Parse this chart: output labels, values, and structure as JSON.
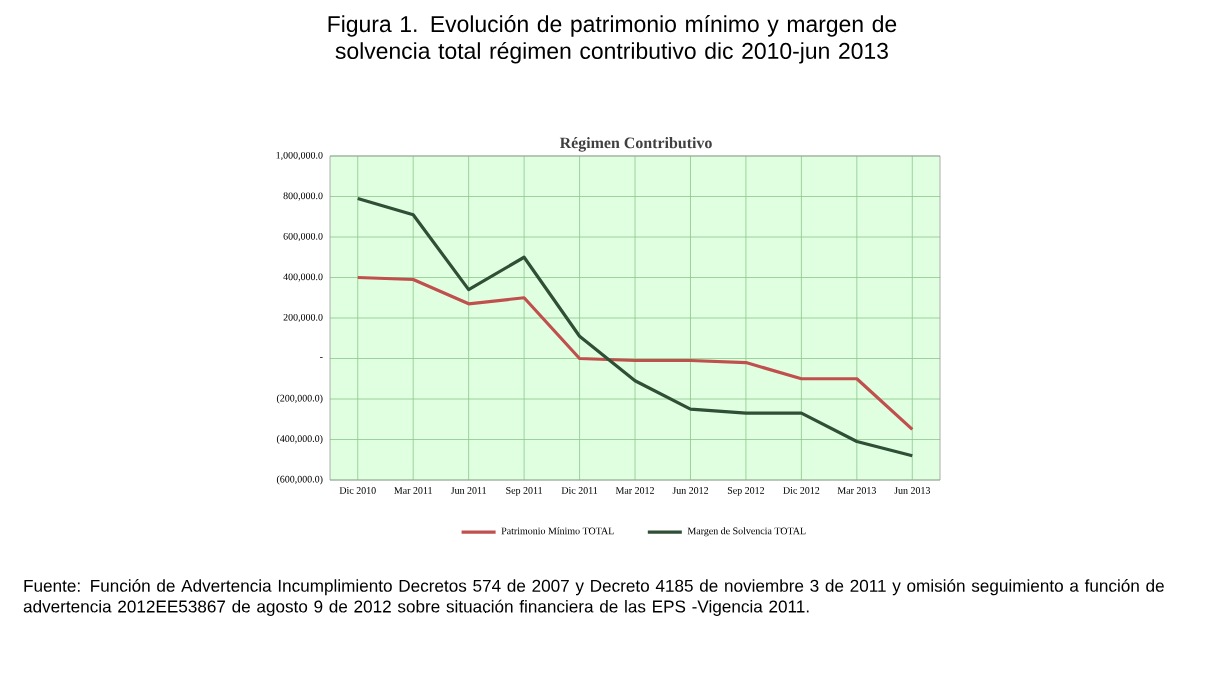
{
  "chart_data": {
    "type": "line",
    "title": "Figura 1. Evolución de patrimonio mínimo y margen de solvencia total régimen contributivo dic 2010-jun 2013",
    "subtitle": "Régimen Contributivo",
    "categories": [
      "Dic 2010",
      "Mar 2011",
      "Jun 2011",
      "Sep 2011",
      "Dic 2011",
      "Mar 2012",
      "Jun 2012",
      "Sep 2012",
      "Dic 2012",
      "Mar 2013",
      "Jun 2013"
    ],
    "series": [
      {
        "name": "Patrimonio Mínimo TOTAL",
        "color": "#c0504d",
        "values": [
          400000,
          390000,
          270000,
          300000,
          0,
          -10000,
          -10000,
          -20000,
          -100000,
          -100000,
          -350000
        ]
      },
      {
        "name": "Margen de Solvencia TOTAL",
        "color": "#2f4f36",
        "values": [
          790000,
          710000,
          340000,
          500000,
          110000,
          -110000,
          -250000,
          -270000,
          -270000,
          -410000,
          -480000
        ]
      }
    ],
    "ylim": [
      -600000,
      1000000
    ],
    "yticks": [
      {
        "value": -600000,
        "label": "(600,000.0)"
      },
      {
        "value": -400000,
        "label": "(400,000.0)"
      },
      {
        "value": -200000,
        "label": "(200,000.0)"
      },
      {
        "value": 0,
        "label": "-"
      },
      {
        "value": 200000,
        "label": "200,000.0"
      },
      {
        "value": 400000,
        "label": "400,000.0"
      },
      {
        "value": 600000,
        "label": "600,000.0"
      },
      {
        "value": 800000,
        "label": "800,000.0"
      },
      {
        "value": 1000000,
        "label": "1,000,000.0"
      }
    ],
    "grid": true,
    "legend": "bottom",
    "marker": "none",
    "line_style": "solid",
    "annotations": [
      "Fuente: Función de Advertencia Incumplimiento Decretos 574 de 2007 y Decreto 4185 de noviembre 3 de 2011 y omisión seguimiento a función de advertencia 2012EE53867 de agosto 9 de 2012 sobre situación financiera de las EPS -Vigencia 2011."
    ]
  }
}
